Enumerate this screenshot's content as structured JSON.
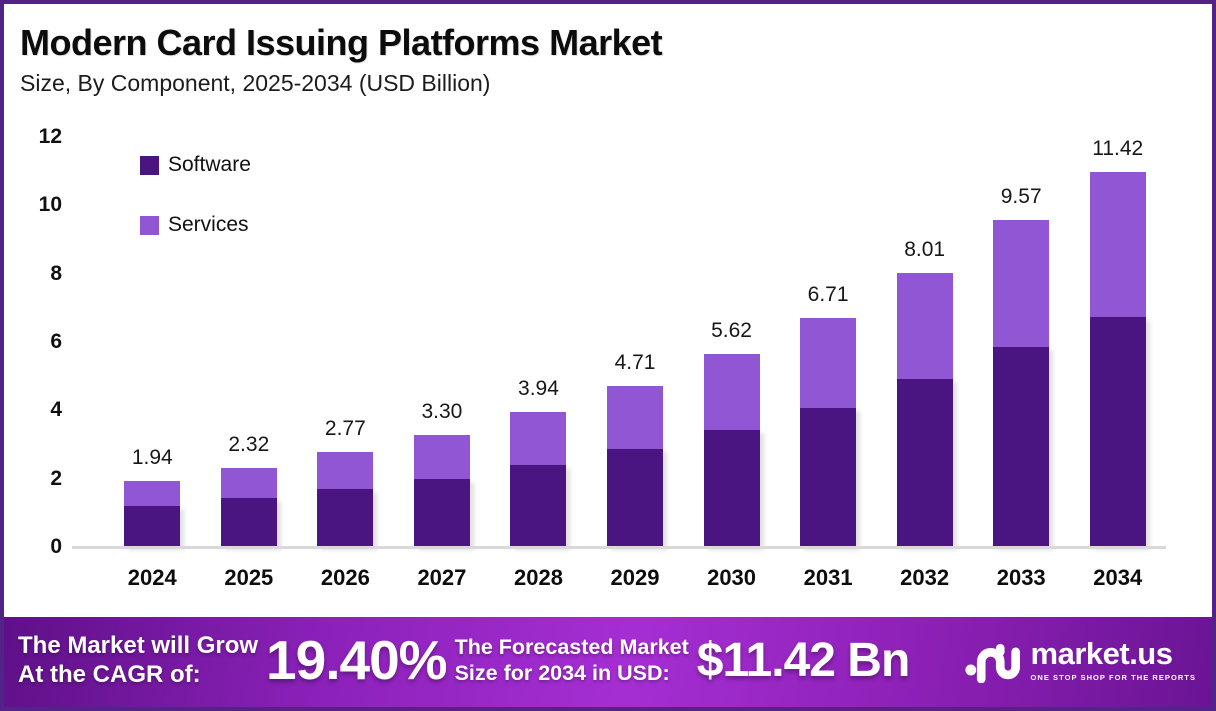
{
  "header": {
    "title": "Modern Card Issuing Platforms Market",
    "subtitle": "Size, By Component, 2025-2034 (USD Billion)"
  },
  "colors": {
    "software": "#4a1581",
    "services": "#9056d3",
    "frame_border": "#542388",
    "axis_line": "#d9d9d9",
    "banner_gradient_start": "#5f1088",
    "banner_gradient_mid": "#a52ed3",
    "banner_gradient_end": "#6a1494",
    "text_dark": "#0c0c0c",
    "text_light": "#ffffff"
  },
  "chart_data": {
    "type": "bar",
    "stacked": true,
    "title": "Modern Card Issuing Platforms Market",
    "subtitle": "Size, By Component, 2025-2034 (USD Billion)",
    "categories": [
      "2024",
      "2025",
      "2026",
      "2027",
      "2028",
      "2029",
      "2030",
      "2031",
      "2032",
      "2033",
      "2034"
    ],
    "series": [
      {
        "name": "Software",
        "color": "#4a1581",
        "values": [
          1.2,
          1.43,
          1.7,
          2.0,
          2.4,
          2.87,
          3.41,
          4.08,
          4.91,
          5.84,
          7.0
        ]
      },
      {
        "name": "Services",
        "color": "#9056d3",
        "values": [
          0.74,
          0.89,
          1.07,
          1.3,
          1.54,
          1.84,
          2.21,
          2.63,
          3.1,
          3.73,
          4.42
        ]
      }
    ],
    "total_labels": [
      "1.94",
      "2.32",
      "2.77",
      "3.30",
      "3.94",
      "4.71",
      "5.62",
      "6.71",
      "8.01",
      "9.57",
      "11.42"
    ],
    "xlabel": "",
    "ylabel": "",
    "ylim": [
      0,
      12
    ],
    "yticks": [
      0,
      2,
      4,
      6,
      8,
      10,
      12
    ],
    "grid": false,
    "legend_position": "top-left"
  },
  "banner": {
    "left_line1": "The Market will Grow",
    "left_line2": "At the CAGR of:",
    "cagr_value": "19.40%",
    "mid_line1": "The Forecasted Market",
    "mid_line2": "Size for 2034 in USD:",
    "forecast_value": "$11.42 Bn",
    "logo_text": "market.us",
    "logo_tagline": "ONE STOP SHOP FOR THE REPORTS"
  }
}
